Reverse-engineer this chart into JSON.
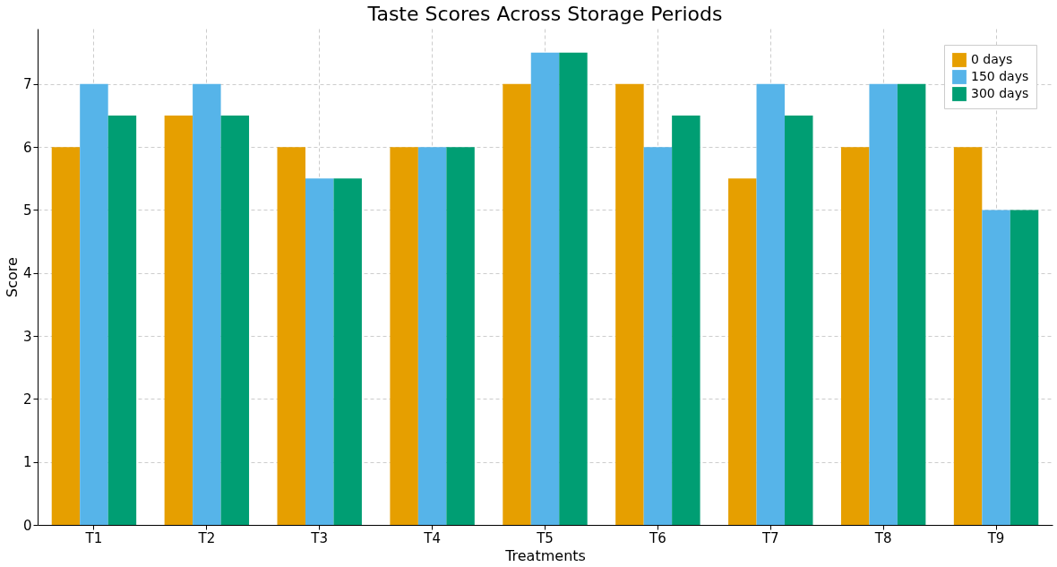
{
  "chart_data": {
    "type": "bar",
    "title": "Taste Scores Across Storage Periods",
    "xlabel": "Treatments",
    "ylabel": "Score",
    "categories": [
      "T1",
      "T2",
      "T3",
      "T4",
      "T5",
      "T6",
      "T7",
      "T8",
      "T9"
    ],
    "series": [
      {
        "name": "0 days",
        "color": "#e69f00",
        "values": [
          6,
          6.5,
          6,
          6,
          7,
          7,
          5.5,
          6,
          6
        ]
      },
      {
        "name": "150 days",
        "color": "#56b4e9",
        "values": [
          7,
          7,
          5.5,
          6,
          7.5,
          6,
          7,
          7,
          5
        ]
      },
      {
        "name": "300 days",
        "color": "#009e73",
        "values": [
          6.5,
          6.5,
          5.5,
          6,
          7.5,
          6.5,
          6.5,
          7,
          5
        ]
      }
    ],
    "ylim": [
      0,
      7.88
    ],
    "yticks": [
      0,
      1,
      2,
      3,
      4,
      5,
      6,
      7
    ],
    "grid": true,
    "legend": "top right"
  }
}
